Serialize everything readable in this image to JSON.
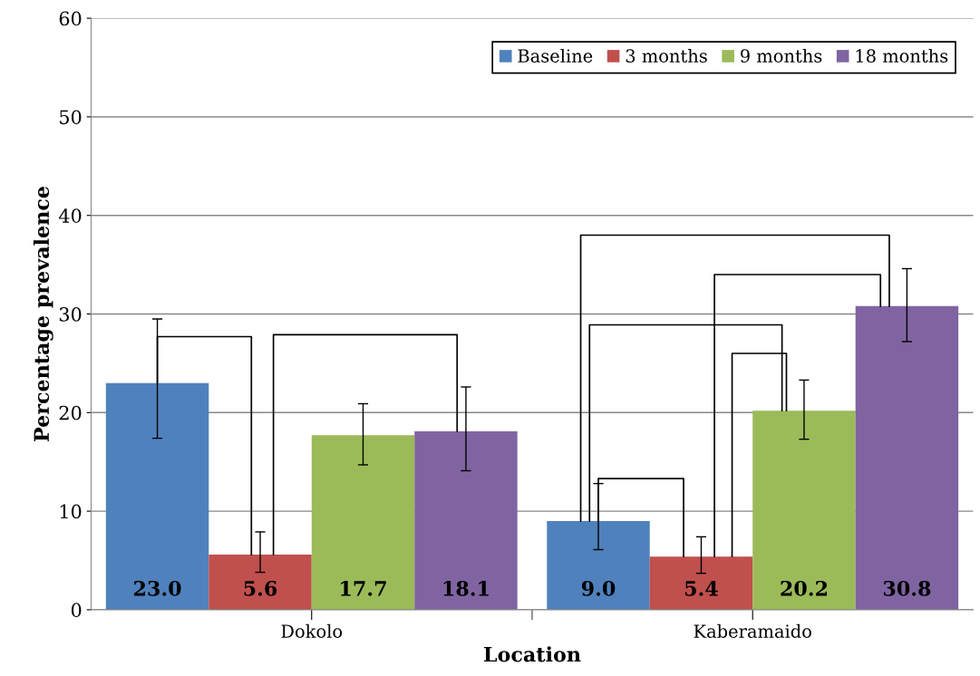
{
  "chart_data": {
    "type": "bar",
    "xlabel": "Location",
    "ylabel": "Percentage prevalence",
    "categories": [
      "Dokolo",
      "Kaberamaido"
    ],
    "series": [
      {
        "name": "Baseline",
        "color": "#4f81bd",
        "values": [
          23.0,
          9.0
        ],
        "value_labels": [
          "23.0",
          "9.0"
        ],
        "errors": [
          [
            17.4,
            29.5
          ],
          [
            6.1,
            12.8
          ]
        ]
      },
      {
        "name": "3 months",
        "color": "#c0504d",
        "values": [
          5.6,
          5.4
        ],
        "value_labels": [
          "5.6",
          "5.4"
        ],
        "errors": [
          [
            3.8,
            7.9
          ],
          [
            3.7,
            7.4
          ]
        ]
      },
      {
        "name": "9 months",
        "color": "#9bbb59",
        "values": [
          17.7,
          20.2
        ],
        "value_labels": [
          "17.7",
          "20.2"
        ],
        "errors": [
          [
            14.7,
            20.9
          ],
          [
            17.3,
            23.3
          ]
        ]
      },
      {
        "name": "18 months",
        "color": "#8064a2",
        "values": [
          18.1,
          30.8
        ],
        "value_labels": [
          "18.1",
          "30.8"
        ],
        "errors": [
          [
            14.1,
            22.6
          ],
          [
            27.2,
            34.6
          ]
        ]
      }
    ],
    "ylim": [
      0,
      60
    ],
    "yticks": [
      0,
      10,
      20,
      30,
      40,
      50,
      60
    ],
    "grid": "y",
    "legend": "top right"
  }
}
